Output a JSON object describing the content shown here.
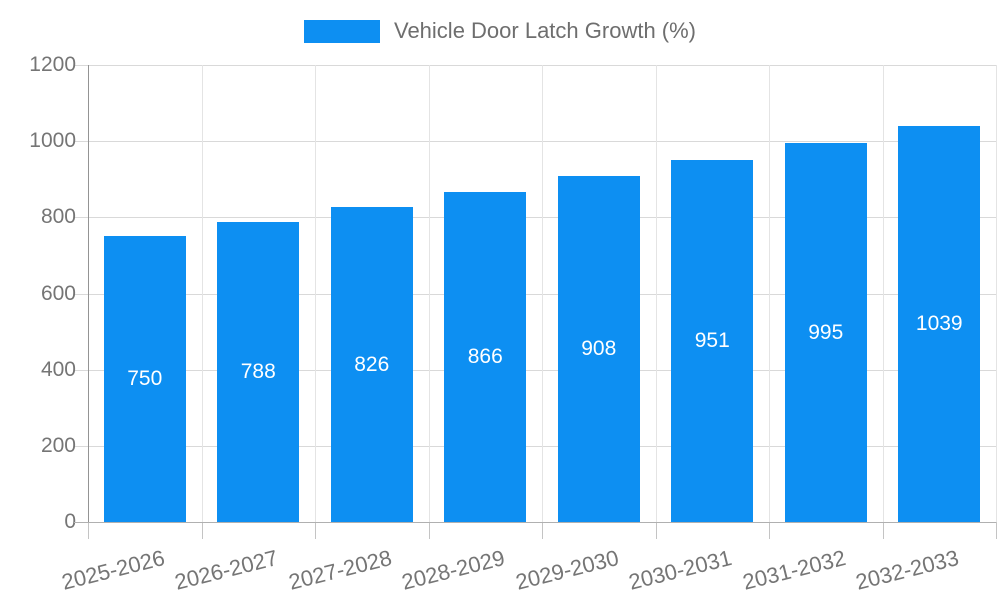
{
  "chart_data": {
    "type": "bar",
    "title": "Vehicle Door Latch Growth (%)",
    "categories": [
      "2025-2026",
      "2026-2027",
      "2027-2028",
      "2028-2029",
      "2029-2030",
      "2030-2031",
      "2031-2032",
      "2032-2033"
    ],
    "values": [
      750,
      788,
      826,
      866,
      908,
      951,
      995,
      1039
    ],
    "xlabel": "",
    "ylabel": "",
    "ylim": [
      0,
      1200
    ],
    "yticks": [
      0,
      200,
      400,
      600,
      800,
      1000,
      1200
    ],
    "grid": "on",
    "legend_position": "top-center",
    "value_labels": "inside-center-white",
    "colors": {
      "bar": "#0D8FF2",
      "value_label": "#ffffff",
      "axis_text": "#757575",
      "legend_text": "#6e6e6e",
      "gridline": "#d9d9d9",
      "axis_line": "#b0b0b0"
    }
  }
}
